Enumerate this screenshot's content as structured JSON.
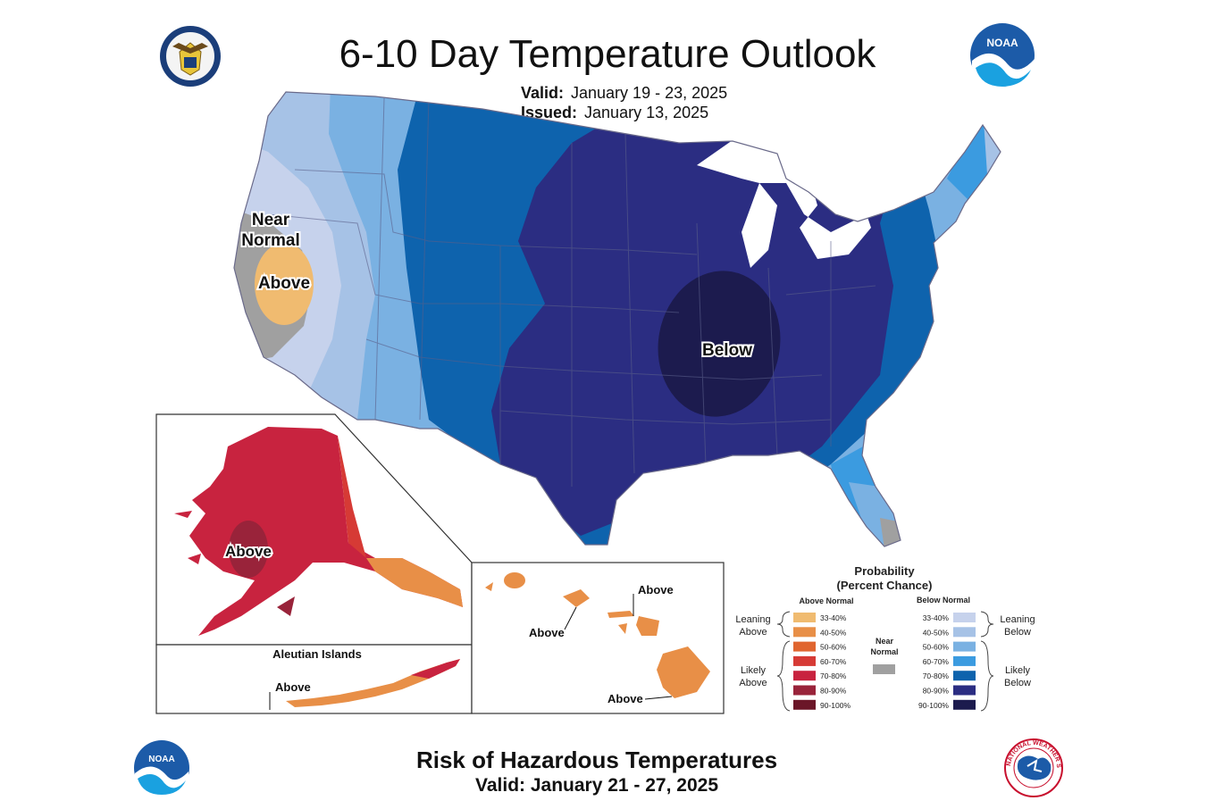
{
  "header": {
    "title": "6-10 Day Temperature Outlook",
    "valid_label": "Valid:",
    "valid_value": "January 19 - 23, 2025",
    "issued_label": "Issued:",
    "issued_value": "January 13, 2025"
  },
  "logos": {
    "commerce_seal": "us-department-of-commerce-seal",
    "noaa_top": "NOAA",
    "noaa_bottom": "NOAA",
    "nws": "NATIONAL WEATHER SERVICE"
  },
  "map_labels": {
    "near_normal_1": "Near",
    "near_normal_2": "Normal",
    "west_above": "Above",
    "below": "Below",
    "alaska_above": "Above",
    "aleutian_title": "Aleutian Islands",
    "aleutian_above": "Above",
    "hawaii_above_1": "Above",
    "hawaii_above_2": "Above",
    "hawaii_above_3": "Above"
  },
  "legend": {
    "title_1": "Probability",
    "title_2": "(Percent Chance)",
    "above_header": "Above Normal",
    "below_header": "Below Normal",
    "near_normal_1": "Near",
    "near_normal_2": "Normal",
    "leaning_above_1": "Leaning",
    "leaning_above_2": "Above",
    "likely_above_1": "Likely",
    "likely_above_2": "Above",
    "leaning_below_1": "Leaning",
    "leaning_below_2": "Below",
    "likely_below_1": "Likely",
    "likely_below_2": "Below",
    "ranges": [
      "33-40%",
      "40-50%",
      "50-60%",
      "60-70%",
      "70-80%",
      "80-90%",
      "90-100%"
    ],
    "above_colors": [
      "#f0bb70",
      "#e88f47",
      "#e0652f",
      "#d63a35",
      "#c8233f",
      "#99233a",
      "#6b1628"
    ],
    "below_colors": [
      "#c6d2ec",
      "#a6c2e6",
      "#7ab1e2",
      "#3b9be0",
      "#0e63ad",
      "#2b2d82",
      "#1c1b4e"
    ],
    "near_color": "#a0a0a0"
  },
  "footer": {
    "title": "Risk of Hazardous Temperatures",
    "valid": "Valid: January 21 - 27, 2025"
  }
}
